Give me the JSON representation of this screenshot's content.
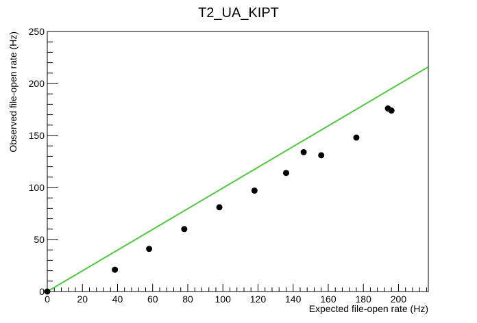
{
  "chart_data": {
    "type": "scatter",
    "title": "T2_UA_KIPT",
    "xlabel": "Expected file-open rate (Hz)",
    "ylabel": "Observed file-open rate (Hz)",
    "xlim": [
      0,
      217
    ],
    "ylim": [
      0,
      250
    ],
    "x_ticks": [
      0,
      20,
      40,
      60,
      80,
      100,
      120,
      140,
      160,
      180,
      200
    ],
    "y_ticks": [
      0,
      50,
      100,
      150,
      200,
      250
    ],
    "grid": false,
    "points": [
      {
        "x": 0,
        "y": 0
      },
      {
        "x": 38.5,
        "y": 21
      },
      {
        "x": 58,
        "y": 41
      },
      {
        "x": 78,
        "y": 60
      },
      {
        "x": 98,
        "y": 81
      },
      {
        "x": 118,
        "y": 97
      },
      {
        "x": 136,
        "y": 114
      },
      {
        "x": 146,
        "y": 134
      },
      {
        "x": 156,
        "y": 131
      },
      {
        "x": 176,
        "y": 148
      },
      {
        "x": 194,
        "y": 176
      },
      {
        "x": 196,
        "y": 174
      }
    ],
    "reference_line": {
      "x": [
        0,
        217
      ],
      "y": [
        0,
        216
      ]
    },
    "colors": {
      "points": "#000000",
      "line": "#4cc93a",
      "axis": "#000000"
    }
  }
}
